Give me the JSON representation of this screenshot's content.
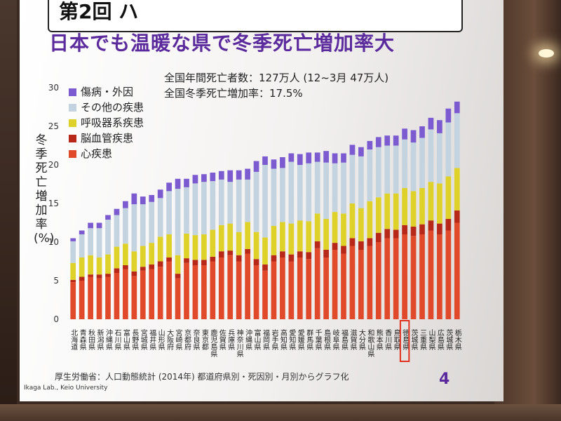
{
  "slide": {
    "top_title": "第2回 ハ",
    "headline": "日本でも温暖な県で冬季死亡増加率大",
    "info_line1": "全国年間死亡者数：127万人 (12~3月 47万人)",
    "info_line2": "全国冬季死亡増加率：17.5%",
    "source_note": "厚生労働省：人口動態統計 (2014年) 都道府県別・死因別・月別からグラフ化",
    "lab": "Ikaga Lab., Keio University",
    "page_number": "4"
  },
  "chart_data": {
    "type": "bar",
    "stacked": true,
    "ylabel": "冬季死亡増加率(%)",
    "ylim": [
      0,
      30
    ],
    "yticks": [
      0,
      5,
      10,
      15,
      20,
      25,
      30
    ],
    "grid": false,
    "legend_position": "top-left",
    "categories": [
      "北海道",
      "青森県",
      "秋田県",
      "新潟県",
      "沖縄県",
      "石川県",
      "富山県",
      "長野県",
      "宮城県",
      "福井県",
      "山形県",
      "大阪府",
      "宮崎県",
      "京都府",
      "奈良県",
      "東京都",
      "鹿児島県",
      "佐賀県",
      "兵庫県",
      "神奈川県",
      "沖縄県",
      "富山県",
      "福岡県",
      "岩手県",
      "高知県",
      "愛知県",
      "愛媛県",
      "群馬県",
      "千葉県",
      "島根県",
      "岐阜県",
      "福島県",
      "滋賀県",
      "大分県",
      "和歌山県",
      "熊本県",
      "香川県",
      "鳥取県",
      "徳島県",
      "茨城県",
      "三重県",
      "山梨県",
      "広島県",
      "茨城県",
      "栃木県"
    ],
    "highlight_category_index": 38,
    "series": [
      {
        "name": "心疾患",
        "color": "#e04a2b",
        "values": [
          4.8,
          5.0,
          5.5,
          5.3,
          5.5,
          6.0,
          6.5,
          5.6,
          6.3,
          6.5,
          6.8,
          7.5,
          5.3,
          7.3,
          7.0,
          7.0,
          7.5,
          8.0,
          8.3,
          7.5,
          8.5,
          7.0,
          6.3,
          7.5,
          8.0,
          7.5,
          8.0,
          7.8,
          9.2,
          8.0,
          9.0,
          8.5,
          9.5,
          9.0,
          9.5,
          10.0,
          10.5,
          10.5,
          11.0,
          10.8,
          11.0,
          11.5,
          11.0,
          11.5,
          12.5
        ]
      },
      {
        "name": "脳血管疾患",
        "color": "#b72819",
        "values": [
          0.3,
          0.5,
          0.3,
          0.5,
          0.4,
          0.6,
          0.5,
          0.6,
          0.5,
          0.6,
          0.7,
          0.5,
          0.6,
          0.6,
          0.7,
          0.7,
          0.6,
          0.8,
          0.6,
          0.8,
          0.6,
          0.8,
          0.8,
          0.8,
          0.8,
          0.9,
          0.8,
          0.9,
          0.9,
          1.0,
          0.9,
          1.0,
          1.0,
          1.1,
          1.0,
          1.2,
          1.2,
          1.1,
          1.2,
          1.2,
          1.3,
          1.3,
          1.4,
          1.5,
          1.6
        ]
      },
      {
        "name": "呼吸器系疾患",
        "color": "#ded12a",
        "values": [
          2.2,
          2.5,
          2.5,
          2.2,
          2.5,
          2.8,
          2.8,
          2.6,
          2.7,
          2.8,
          3.2,
          3.0,
          2.4,
          3.2,
          3.2,
          3.3,
          3.5,
          3.4,
          3.5,
          3.0,
          3.5,
          3.5,
          3.5,
          3.8,
          3.8,
          4.0,
          4.0,
          4.0,
          3.6,
          4.0,
          4.0,
          4.2,
          4.5,
          4.3,
          4.8,
          4.6,
          4.6,
          4.7,
          4.8,
          4.6,
          4.7,
          5.0,
          5.2,
          5.5,
          5.5
        ]
      },
      {
        "name": "その他の疾患",
        "color": "#c3d3df",
        "values": [
          2.8,
          3.0,
          3.5,
          3.8,
          4.5,
          4.1,
          4.6,
          6.1,
          5.4,
          5.3,
          5.0,
          5.6,
          8.6,
          6.0,
          6.7,
          6.8,
          6.3,
          5.9,
          5.4,
          6.8,
          5.5,
          7.8,
          9.4,
          7.4,
          7.0,
          8.0,
          7.2,
          7.5,
          6.7,
          7.3,
          6.3,
          6.6,
          6.3,
          6.7,
          6.7,
          6.5,
          6.2,
          6.2,
          6.3,
          6.3,
          6.5,
          6.8,
          6.5,
          7.0,
          7.1
        ]
      },
      {
        "name": "傷病・外因",
        "color": "#7b5bcf",
        "values": [
          0.4,
          0.5,
          0.7,
          0.7,
          0.6,
          0.8,
          0.9,
          1.4,
          1.0,
          0.9,
          1.1,
          1.1,
          1.3,
          1.1,
          1.1,
          1.0,
          1.1,
          1.1,
          1.5,
          1.2,
          1.4,
          1.4,
          1.1,
          1.2,
          1.4,
          1.1,
          1.4,
          1.4,
          1.2,
          1.5,
          1.3,
          1.2,
          1.3,
          1.2,
          1.1,
          1.3,
          1.3,
          1.3,
          1.4,
          1.6,
          1.5,
          1.5,
          1.7,
          1.8,
          1.5
        ]
      }
    ]
  }
}
